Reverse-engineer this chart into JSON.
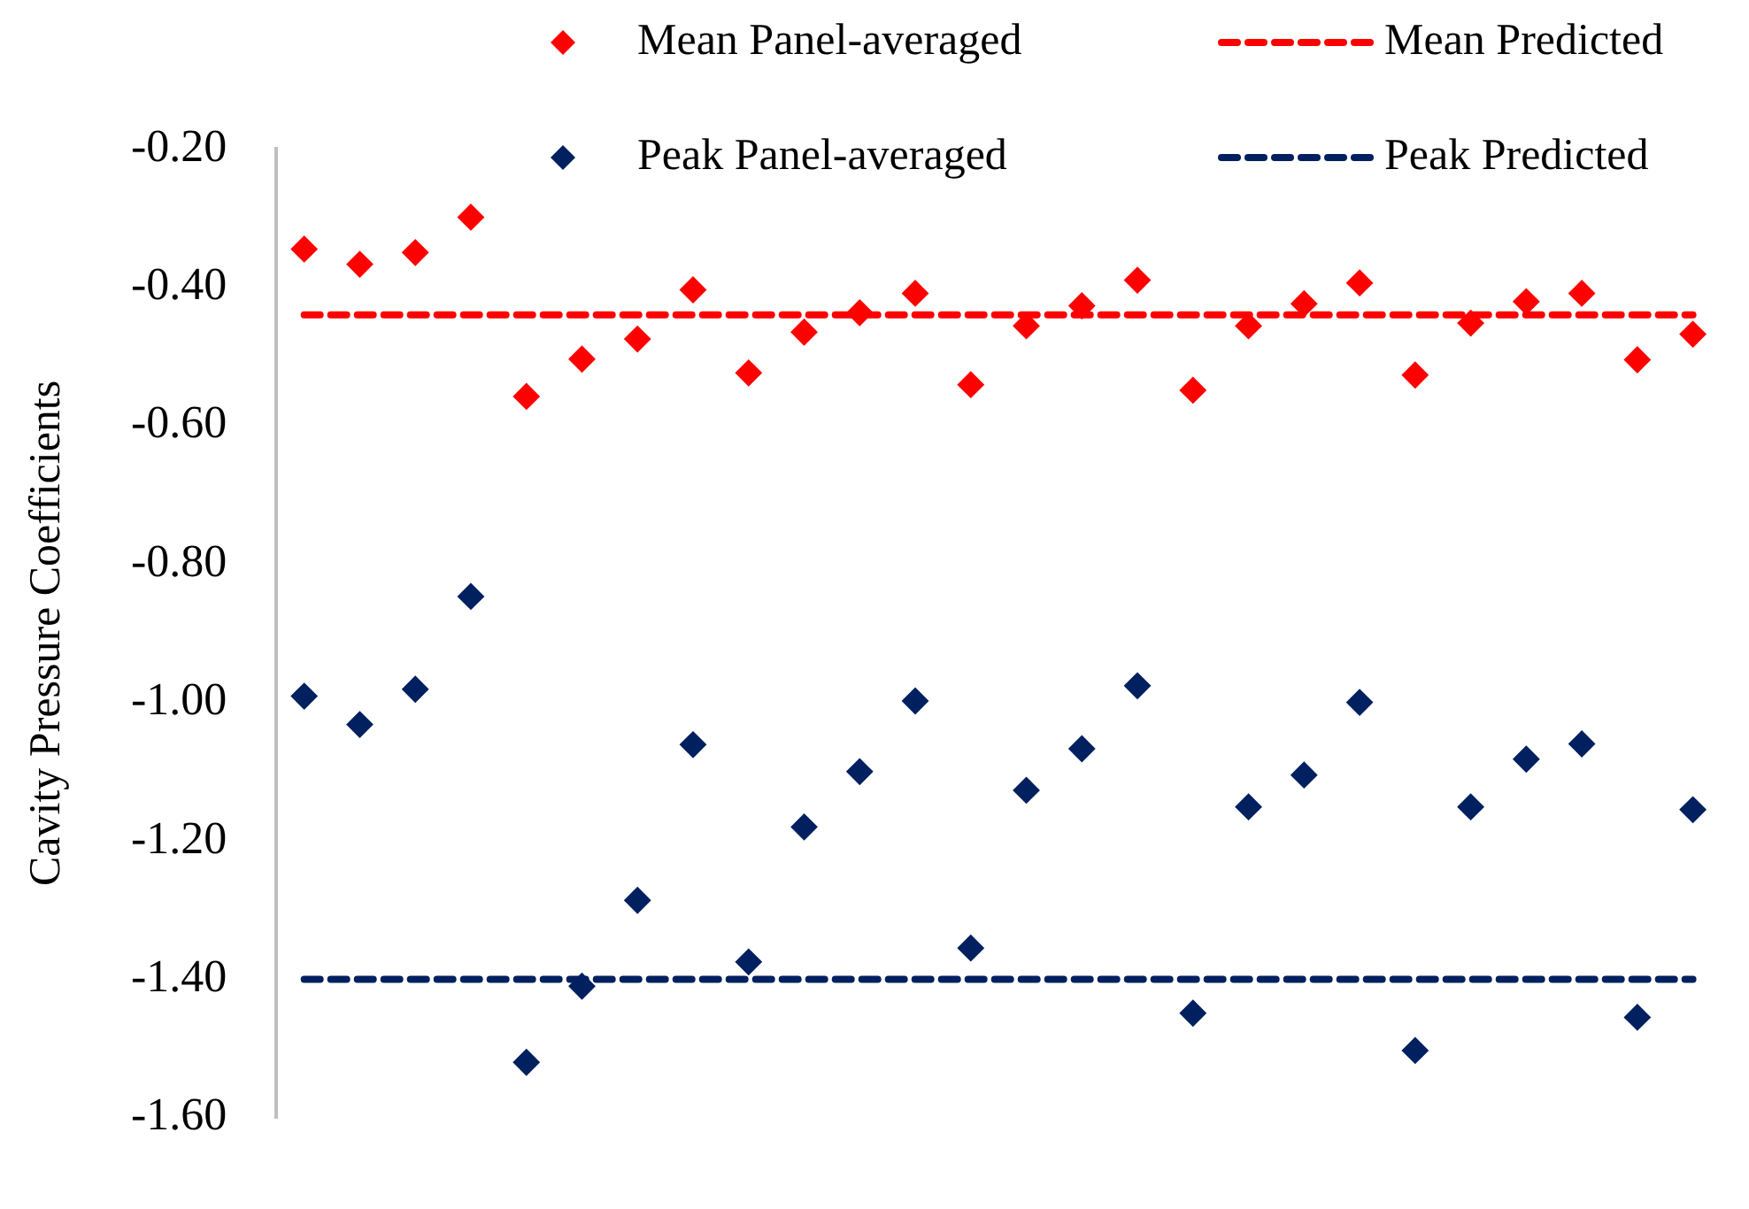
{
  "chart_data": {
    "type": "scatter",
    "ylabel": "Cavity Pressure Coefficients",
    "categories": [
      null,
      null,
      null,
      null,
      null,
      null,
      null,
      null,
      null,
      null,
      null,
      null,
      null,
      null,
      null,
      null,
      null,
      null,
      null,
      null,
      null,
      null,
      null,
      null,
      null,
      null
    ],
    "series": [
      {
        "name": "Mean Panel-averaged",
        "type": "scatter",
        "color": "#ff0000",
        "marker": "diamond",
        "values": [
          -0.345,
          -0.367,
          -0.35,
          -0.299,
          -0.558,
          -0.504,
          -0.475,
          -0.404,
          -0.524,
          -0.465,
          -0.437,
          -0.409,
          -0.541,
          -0.456,
          -0.427,
          -0.39,
          -0.549,
          -0.456,
          -0.424,
          -0.394,
          -0.527,
          -0.452,
          -0.421,
          -0.409,
          -0.505,
          -0.468
        ]
      },
      {
        "name": "Mean Predicted",
        "type": "line",
        "color": "#ff0000",
        "marker": "none",
        "line_style": "dashed",
        "values": [
          -0.44,
          -0.44,
          -0.44,
          -0.44,
          -0.44,
          -0.44,
          -0.44,
          -0.44,
          -0.44,
          -0.44,
          -0.44,
          -0.44,
          -0.44,
          -0.44,
          -0.44,
          -0.44,
          -0.44,
          -0.44,
          -0.44,
          -0.44,
          -0.44,
          -0.44,
          -0.44,
          -0.44,
          -0.44,
          -0.44
        ]
      },
      {
        "name": "Peak Panel-averaged",
        "type": "scatter",
        "color": "#002060",
        "marker": "diamond",
        "values": [
          -0.991,
          -1.032,
          -0.981,
          -0.847,
          -1.52,
          -1.41,
          -1.286,
          -1.061,
          -1.375,
          -1.18,
          -1.1,
          -0.998,
          -1.355,
          -1.127,
          -1.067,
          -0.976,
          -1.449,
          -1.151,
          -1.105,
          -1.0,
          -1.503,
          -1.151,
          -1.082,
          -1.06,
          -1.455,
          -1.155
        ]
      },
      {
        "name": "Peak Predicted",
        "type": "line",
        "color": "#002060",
        "marker": "none",
        "line_style": "dashed",
        "values": [
          -1.4,
          -1.4,
          -1.4,
          -1.4,
          -1.4,
          -1.4,
          -1.4,
          -1.4,
          -1.4,
          -1.4,
          -1.4,
          -1.4,
          -1.4,
          -1.4,
          -1.4,
          -1.4,
          -1.4,
          -1.4,
          -1.4,
          -1.4,
          -1.4,
          -1.4,
          -1.4,
          -1.4,
          -1.4,
          -1.4
        ]
      }
    ],
    "ylim": [
      -1.6,
      -0.2
    ],
    "yticks": [
      {
        "value": -1.6,
        "label": "-1.60"
      },
      {
        "value": -1.4,
        "label": "-1.40"
      },
      {
        "value": -1.2,
        "label": "-1.20"
      },
      {
        "value": -1.0,
        "label": "-1.00"
      },
      {
        "value": -0.8,
        "label": "-0.80"
      },
      {
        "value": -0.6,
        "label": "-0.60"
      },
      {
        "value": -0.4,
        "label": "-0.40"
      },
      {
        "value": -0.2,
        "label": "-0.20"
      }
    ],
    "grid": false,
    "legend": "top"
  }
}
